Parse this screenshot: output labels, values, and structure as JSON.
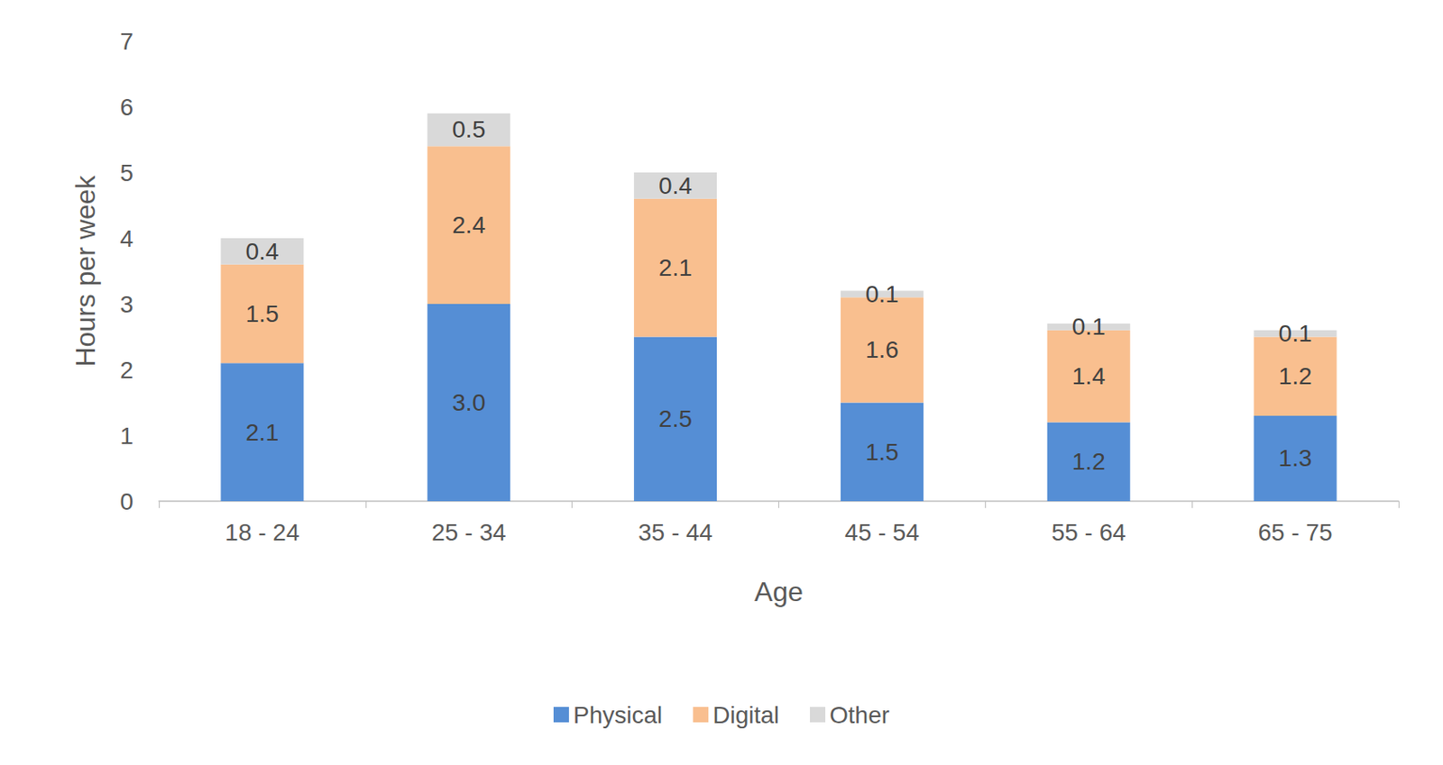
{
  "chart_data": {
    "type": "bar",
    "stacked": true,
    "data_labels": true,
    "grid": false,
    "legend": "bottom",
    "x_label": "Age",
    "y_label": "Hours per week",
    "categories": [
      "18 - 24",
      "25 - 34",
      "35 - 44",
      "45 - 54",
      "55 - 64",
      "65 - 75"
    ],
    "series": [
      {
        "name": "Physical",
        "color": "#558ed5",
        "values": [
          2.1,
          3.0,
          2.5,
          1.5,
          1.2,
          1.3
        ],
        "value_labels": [
          "2.1",
          "3.0",
          "2.5",
          "1.5",
          "1.2",
          "1.3"
        ]
      },
      {
        "name": "Digital",
        "color": "#f9bf8f",
        "values": [
          1.5,
          2.4,
          2.1,
          1.6,
          1.4,
          1.2
        ],
        "value_labels": [
          "1.5",
          "2.4",
          "2.1",
          "1.6",
          "1.4",
          "1.2"
        ]
      },
      {
        "name": "Other",
        "color": "#d9d9d9",
        "values": [
          0.4,
          0.5,
          0.4,
          0.1,
          0.1,
          0.1
        ],
        "value_labels": [
          "0.4",
          "0.5",
          "0.4",
          "0.1",
          "0.1",
          "0.1"
        ]
      }
    ],
    "ylim": [
      0,
      7
    ],
    "yticks": [
      0,
      1,
      2,
      3,
      4,
      5,
      6,
      7
    ]
  }
}
